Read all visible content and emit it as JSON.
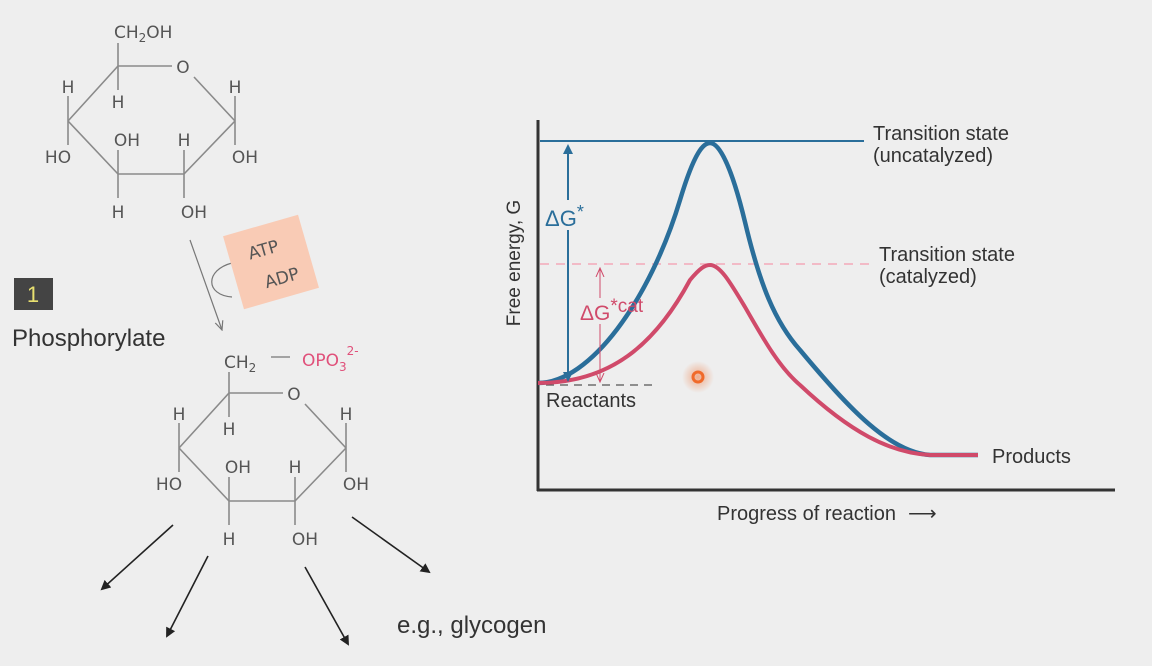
{
  "colors": {
    "background": "#eeeeee",
    "uncatalyzed": "#2a6e9a",
    "catalyzed": "#d04a6a",
    "phosphate": "#e0507a",
    "atp_box": "#f9cbb5",
    "step_box": "#444444",
    "step_number": "#e8e070",
    "pointer": "#f06a2a"
  },
  "glucose": {
    "ch2oh": "CH2OH",
    "ch2oh_main": "CH",
    "ch2oh_sub": "2",
    "ch2oh_tail": "OH",
    "ring_o": "O",
    "h": "H",
    "oh": "OH",
    "ho": "HO"
  },
  "step": {
    "number": "1",
    "label": "Phosphorylate",
    "cofactor_in": "ATP",
    "cofactor_out": "ADP"
  },
  "glucose_6_phosphate": {
    "ch2_main": "CH",
    "ch2_sub": "2",
    "bond": "—",
    "phosphate_main": "OPO",
    "phosphate_sub": "3",
    "phosphate_charge": "2-"
  },
  "example": "e.g., glycogen",
  "energy_diagram": {
    "ylabel": "Free energy, G",
    "xlabel": "Progress of reaction",
    "xlabel_arrow": "⟶",
    "transition_uncat_line1": "Transition state",
    "transition_uncat_line2": "(uncatalyzed)",
    "transition_cat_line1": "Transition state",
    "transition_cat_line2": "(catalyzed)",
    "reactants": "Reactants",
    "products": "Products",
    "dg_uncat_main": "ΔG",
    "dg_uncat_sup": "*",
    "dg_cat_main": "ΔG",
    "dg_cat_sup": "*cat"
  },
  "icons": [
    "arrow-icon",
    "pointer-dot-icon"
  ]
}
